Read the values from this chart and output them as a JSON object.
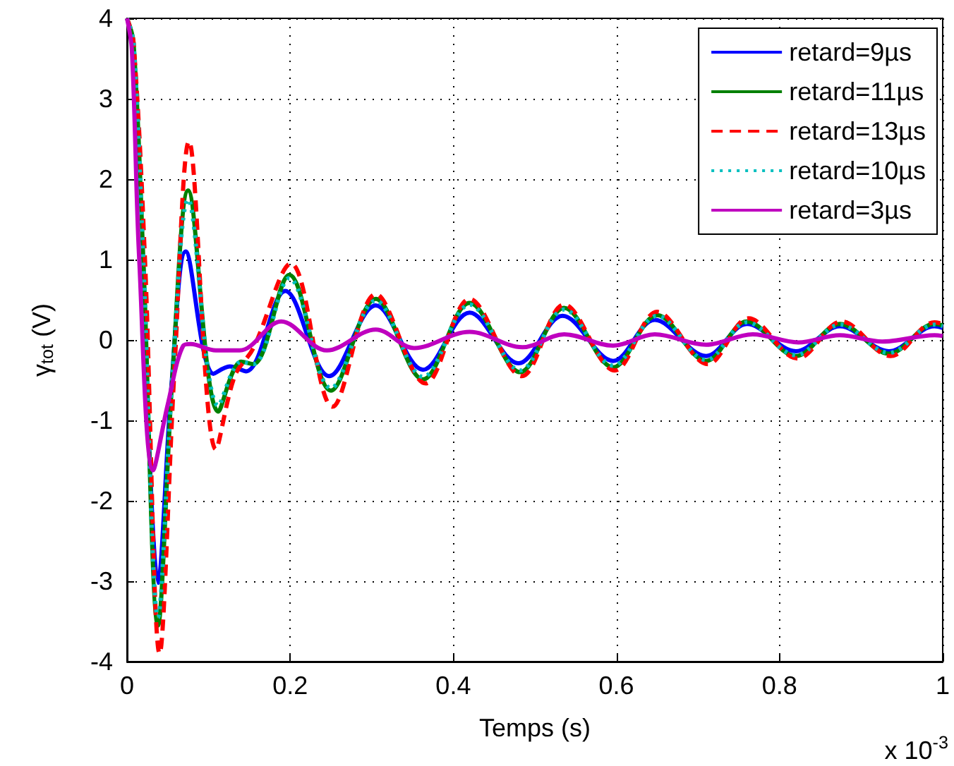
{
  "chart_data": {
    "type": "line",
    "xlabel": "Temps (s)",
    "ylabel": "γ$_{tot}$ (V)",
    "annotations": [
      "x 10$^{-3}$"
    ],
    "xlim": [
      0,
      1
    ],
    "xticks": [
      0,
      0.2,
      0.4,
      0.6,
      0.8,
      1
    ],
    "ylim": [
      -4,
      4
    ],
    "yticks": [
      -4,
      -3,
      -2,
      -1,
      0,
      1,
      2,
      3,
      4
    ],
    "grid": true,
    "legend": "top right",
    "series": [
      {
        "name": "retard=9µs",
        "color": "#0000ff",
        "line_style": "solid",
        "x": [
          0.02,
          0.038,
          0.055,
          0.072,
          0.106,
          0.126,
          0.146,
          0.194,
          0.248,
          0.305,
          0.363,
          0.42,
          0.48,
          0.534,
          0.596,
          0.647,
          0.71,
          0.76,
          0.82,
          0.874,
          0.934,
          0.99,
          1.0
        ],
        "values": [
          0.9,
          -3.02,
          -0.5,
          1.1,
          -0.42,
          -0.33,
          -0.39,
          0.61,
          -0.45,
          0.43,
          -0.37,
          0.34,
          -0.29,
          0.3,
          -0.26,
          0.25,
          -0.2,
          0.2,
          -0.14,
          0.17,
          -0.14,
          0.17,
          0.15
        ]
      },
      {
        "name": "retard=11µs",
        "color": "#008000",
        "line_style": "solid",
        "x": [
          0,
          0.008,
          0.02,
          0.038,
          0.056,
          0.075,
          0.112,
          0.14,
          0.155,
          0.199,
          0.25,
          0.305,
          0.363,
          0.42,
          0.482,
          0.536,
          0.596,
          0.65,
          0.71,
          0.76,
          0.82,
          0.874,
          0.934,
          0.99,
          1.0
        ],
        "values": [
          4,
          3.7,
          1.0,
          -3.55,
          -0.4,
          1.86,
          -0.89,
          -0.27,
          -0.3,
          0.81,
          -0.63,
          0.51,
          -0.49,
          0.46,
          -0.4,
          0.4,
          -0.34,
          0.31,
          -0.26,
          0.23,
          -0.2,
          0.2,
          -0.17,
          0.2,
          0.18
        ]
      },
      {
        "name": "retard=13µs",
        "color": "#ff0000",
        "line_style": "dashed",
        "x": [
          0,
          0.008,
          0.022,
          0.04,
          0.058,
          0.076,
          0.109,
          0.132,
          0.155,
          0.201,
          0.252,
          0.305,
          0.366,
          0.42,
          0.484,
          0.536,
          0.598,
          0.65,
          0.712,
          0.762,
          0.822,
          0.876,
          0.936,
          0.99,
          1.0
        ],
        "values": [
          4,
          3.7,
          1.0,
          -3.9,
          -0.4,
          2.47,
          -1.36,
          -0.45,
          -0.1,
          0.95,
          -0.83,
          0.57,
          -0.54,
          0.51,
          -0.45,
          0.44,
          -0.38,
          0.35,
          -0.3,
          0.27,
          -0.23,
          0.23,
          -0.2,
          0.22,
          0.2
        ]
      },
      {
        "name": "retard=10µs",
        "color": "#00bfbf",
        "line_style": "dotted",
        "x": [
          0,
          0.008,
          0.02,
          0.038,
          0.056,
          0.075,
          0.112,
          0.14,
          0.155,
          0.199,
          0.25,
          0.305,
          0.363,
          0.42,
          0.482,
          0.536,
          0.596,
          0.65,
          0.71,
          0.76,
          0.82,
          0.874,
          0.934,
          0.99,
          1.0
        ],
        "values": [
          4,
          3.7,
          1.0,
          -3.45,
          -0.4,
          1.75,
          -0.82,
          -0.27,
          -0.3,
          0.77,
          -0.6,
          0.49,
          -0.46,
          0.44,
          -0.38,
          0.38,
          -0.32,
          0.3,
          -0.25,
          0.22,
          -0.19,
          0.19,
          -0.16,
          0.19,
          0.17
        ]
      },
      {
        "name": "retard=3µs",
        "color": "#bf00bf",
        "line_style": "solid",
        "x": [
          0,
          0.006,
          0.015,
          0.032,
          0.05,
          0.069,
          0.078,
          0.109,
          0.138,
          0.189,
          0.245,
          0.305,
          0.352,
          0.42,
          0.485,
          0.536,
          0.596,
          0.647,
          0.71,
          0.767,
          0.823,
          0.874,
          0.926,
          0.99,
          1.0
        ],
        "values": [
          4,
          3.6,
          1.0,
          -1.62,
          -0.8,
          -0.07,
          -0.05,
          -0.13,
          -0.13,
          0.23,
          -0.13,
          0.13,
          -0.1,
          0.1,
          -0.09,
          0.07,
          -0.07,
          0.07,
          -0.06,
          0.07,
          -0.03,
          0.06,
          -0.02,
          0.06,
          0.05
        ]
      }
    ]
  }
}
